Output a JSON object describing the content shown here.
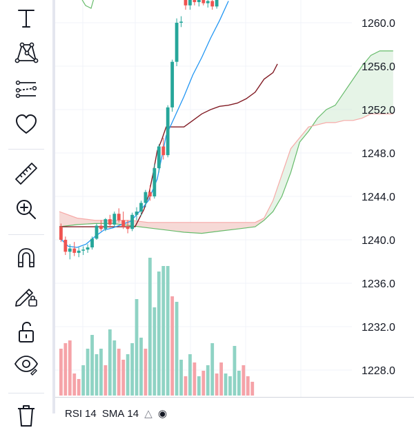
{
  "price_axis": {
    "ticks": [
      "1260.0",
      "1256.0",
      "1252.0",
      "1248.0",
      "1244.0",
      "1240.0",
      "1236.0",
      "1232.0",
      "1228.0"
    ]
  },
  "toolbar": {
    "tools": [
      {
        "name": "text-tool",
        "icon": "text-T-icon"
      },
      {
        "name": "patterns-tool",
        "icon": "xabcd-pattern-icon"
      },
      {
        "name": "prediction-tool",
        "icon": "forecast-lines-icon"
      },
      {
        "name": "favorites-tool",
        "icon": "heart-icon"
      },
      {
        "name": "measure-tool",
        "icon": "ruler-icon"
      },
      {
        "name": "zoom-tool",
        "icon": "zoom-in-icon"
      },
      {
        "name": "magnet-tool",
        "icon": "magnet-icon"
      },
      {
        "name": "lock-drawing-tool",
        "icon": "pencil-lock-icon"
      },
      {
        "name": "lock-all-tool",
        "icon": "unlock-icon"
      },
      {
        "name": "hide-drawings-tool",
        "icon": "eye-icon"
      },
      {
        "name": "remove-tool",
        "icon": "trash-icon"
      }
    ]
  },
  "rsi": {
    "name": "RSI",
    "length": "14",
    "ma_type": "SMA",
    "ma_length": "14"
  },
  "colors": {
    "up": "#26a69a",
    "down": "#ef5350",
    "conversion_line": "#2196f3",
    "base_line": "#801922",
    "span_a": "#66bb6a",
    "span_b": "#f7a9a7",
    "grid": "#f0f3fa"
  },
  "chart_data": {
    "type": "candlestick",
    "ylim": [
      1226.0,
      1262.0
    ],
    "candles": [
      {
        "o": 1241.2,
        "h": 1241.5,
        "l": 1239.8,
        "c": 1240.0
      },
      {
        "o": 1240.0,
        "h": 1240.3,
        "l": 1238.6,
        "c": 1238.9
      },
      {
        "o": 1238.9,
        "h": 1239.6,
        "l": 1238.2,
        "c": 1239.2
      },
      {
        "o": 1239.2,
        "h": 1239.8,
        "l": 1238.5,
        "c": 1238.8
      },
      {
        "o": 1238.8,
        "h": 1239.3,
        "l": 1238.4,
        "c": 1239.0
      },
      {
        "o": 1239.0,
        "h": 1239.4,
        "l": 1238.6,
        "c": 1239.1
      },
      {
        "o": 1239.1,
        "h": 1239.6,
        "l": 1238.8,
        "c": 1239.3
      },
      {
        "o": 1239.3,
        "h": 1240.3,
        "l": 1239.1,
        "c": 1240.1
      },
      {
        "o": 1240.1,
        "h": 1241.5,
        "l": 1240.0,
        "c": 1241.3
      },
      {
        "o": 1241.3,
        "h": 1241.8,
        "l": 1240.8,
        "c": 1241.0
      },
      {
        "o": 1241.0,
        "h": 1242.0,
        "l": 1240.8,
        "c": 1241.9
      },
      {
        "o": 1241.9,
        "h": 1242.3,
        "l": 1241.1,
        "c": 1241.4
      },
      {
        "o": 1241.4,
        "h": 1242.6,
        "l": 1241.2,
        "c": 1242.4
      },
      {
        "o": 1242.4,
        "h": 1242.9,
        "l": 1241.6,
        "c": 1241.8
      },
      {
        "o": 1241.8,
        "h": 1242.6,
        "l": 1241.0,
        "c": 1241.2
      },
      {
        "o": 1241.2,
        "h": 1241.8,
        "l": 1240.6,
        "c": 1241.0
      },
      {
        "o": 1241.0,
        "h": 1242.5,
        "l": 1240.8,
        "c": 1242.3
      },
      {
        "o": 1242.3,
        "h": 1243.0,
        "l": 1241.8,
        "c": 1242.6
      },
      {
        "o": 1242.6,
        "h": 1243.6,
        "l": 1242.2,
        "c": 1243.4
      },
      {
        "o": 1243.4,
        "h": 1244.6,
        "l": 1243.0,
        "c": 1244.4
      },
      {
        "o": 1244.4,
        "h": 1245.0,
        "l": 1243.6,
        "c": 1244.0
      },
      {
        "o": 1244.0,
        "h": 1247.0,
        "l": 1243.8,
        "c": 1246.6
      },
      {
        "o": 1246.6,
        "h": 1248.8,
        "l": 1246.2,
        "c": 1248.6
      },
      {
        "o": 1248.6,
        "h": 1249.4,
        "l": 1247.4,
        "c": 1247.8
      },
      {
        "o": 1247.8,
        "h": 1252.4,
        "l": 1247.6,
        "c": 1252.2
      },
      {
        "o": 1252.2,
        "h": 1256.6,
        "l": 1251.8,
        "c": 1256.4
      },
      {
        "o": 1256.4,
        "h": 1260.4,
        "l": 1256.0,
        "c": 1260.0
      },
      {
        "o": 1260.0,
        "h": 1260.6,
        "l": 1259.6,
        "c": 1260.1
      }
    ],
    "late_candles": [
      {
        "o": 1262.2,
        "h": 1262.6,
        "l": 1261.2,
        "c": 1261.6
      },
      {
        "o": 1261.6,
        "h": 1262.4,
        "l": 1261.2,
        "c": 1262.2
      },
      {
        "o": 1262.2,
        "h": 1262.8,
        "l": 1261.6,
        "c": 1261.9
      },
      {
        "o": 1261.9,
        "h": 1262.4,
        "l": 1261.5,
        "c": 1262.1
      },
      {
        "o": 1262.1,
        "h": 1262.6,
        "l": 1261.6,
        "c": 1261.8
      },
      {
        "o": 1261.8,
        "h": 1262.2,
        "l": 1261.4,
        "c": 1262.0
      },
      {
        "o": 1262.0,
        "h": 1262.4,
        "l": 1261.2,
        "c": 1261.5
      },
      {
        "o": 1261.5,
        "h": 1262.3,
        "l": 1261.3,
        "c": 1262.1
      }
    ],
    "volume": [
      {
        "v": 0.34,
        "up": false
      },
      {
        "v": 0.38,
        "up": false
      },
      {
        "v": 0.4,
        "up": false
      },
      {
        "v": 0.16,
        "up": false
      },
      {
        "v": 0.12,
        "up": false
      },
      {
        "v": 0.22,
        "up": true
      },
      {
        "v": 0.34,
        "up": true
      },
      {
        "v": 0.44,
        "up": true
      },
      {
        "v": 0.3,
        "up": true
      },
      {
        "v": 0.34,
        "up": true
      },
      {
        "v": 0.22,
        "up": false
      },
      {
        "v": 0.48,
        "up": true
      },
      {
        "v": 0.4,
        "up": true
      },
      {
        "v": 0.34,
        "up": false
      },
      {
        "v": 0.26,
        "up": false
      },
      {
        "v": 0.3,
        "up": true
      },
      {
        "v": 0.38,
        "up": true
      },
      {
        "v": 0.7,
        "up": true
      },
      {
        "v": 0.42,
        "up": true
      },
      {
        "v": 0.34,
        "up": false
      },
      {
        "v": 1.0,
        "up": true
      },
      {
        "v": 0.64,
        "up": true
      },
      {
        "v": 0.9,
        "up": true
      },
      {
        "v": 0.94,
        "up": true
      },
      {
        "v": 0.94,
        "up": true
      },
      {
        "v": 0.72,
        "up": false
      },
      {
        "v": 0.68,
        "up": true
      },
      {
        "v": 0.26,
        "up": true
      },
      {
        "v": 0.14,
        "up": false
      },
      {
        "v": 0.3,
        "up": true
      },
      {
        "v": 0.24,
        "up": false
      },
      {
        "v": 0.14,
        "up": true
      },
      {
        "v": 0.18,
        "up": false
      },
      {
        "v": 0.22,
        "up": true
      },
      {
        "v": 0.38,
        "up": true
      },
      {
        "v": 0.16,
        "up": false
      },
      {
        "v": 0.24,
        "up": false
      },
      {
        "v": 0.16,
        "up": true
      },
      {
        "v": 0.14,
        "up": true
      },
      {
        "v": 0.36,
        "up": true
      },
      {
        "v": 0.18,
        "up": true
      },
      {
        "v": 0.22,
        "up": false
      },
      {
        "v": 0.14,
        "up": false
      },
      {
        "v": 0.1,
        "up": false
      }
    ],
    "conversion_line": [
      [
        0,
        1240.2
      ],
      [
        2,
        1239.4
      ],
      [
        4,
        1239.3
      ],
      [
        6,
        1239.6
      ],
      [
        8,
        1240.3
      ],
      [
        10,
        1240.9
      ],
      [
        12,
        1241.1
      ],
      [
        14,
        1241.4
      ],
      [
        16,
        1241.7
      ],
      [
        18,
        1242.6
      ],
      [
        20,
        1243.6
      ],
      [
        22,
        1245.6
      ],
      [
        24,
        1249.6
      ],
      [
        26,
        1251.4
      ],
      [
        28,
        1253.2
      ],
      [
        30,
        1255.2
      ],
      [
        32,
        1256.8
      ],
      [
        34,
        1258.6
      ],
      [
        36,
        1260.2
      ],
      [
        38,
        1262.0
      ]
    ],
    "base_line": [
      [
        0,
        1241.2
      ],
      [
        6,
        1241.2
      ],
      [
        8,
        1241.2
      ],
      [
        17,
        1241.2
      ],
      [
        18,
        1242.0
      ],
      [
        19,
        1242.8
      ],
      [
        20,
        1244.0
      ],
      [
        21,
        1246.0
      ],
      [
        22,
        1248.2
      ],
      [
        23,
        1249.2
      ],
      [
        24,
        1250.4
      ],
      [
        26,
        1250.4
      ],
      [
        28,
        1250.4
      ],
      [
        30,
        1251.0
      ],
      [
        32,
        1251.6
      ],
      [
        34,
        1252.0
      ],
      [
        36,
        1252.3
      ],
      [
        38,
        1252.4
      ],
      [
        40,
        1252.6
      ],
      [
        42,
        1253.0
      ],
      [
        44,
        1253.6
      ],
      [
        46,
        1254.8
      ],
      [
        48,
        1255.4
      ],
      [
        49,
        1256.2
      ]
    ],
    "span_a": [
      [
        0,
        1241.2
      ],
      [
        4,
        1241.4
      ],
      [
        8,
        1241.5
      ],
      [
        12,
        1241.5
      ],
      [
        16,
        1241.3
      ],
      [
        20,
        1241.1
      ],
      [
        24,
        1240.9
      ],
      [
        28,
        1240.7
      ],
      [
        32,
        1240.6
      ],
      [
        36,
        1240.8
      ],
      [
        40,
        1241.0
      ],
      [
        44,
        1241.2
      ],
      [
        46,
        1241.8
      ],
      [
        48,
        1242.6
      ],
      [
        50,
        1244.0
      ],
      [
        52,
        1246.2
      ],
      [
        54,
        1249.0
      ],
      [
        56,
        1250.0
      ],
      [
        58,
        1251.2
      ],
      [
        60,
        1252.0
      ],
      [
        62,
        1252.4
      ],
      [
        64,
        1253.6
      ],
      [
        66,
        1254.8
      ],
      [
        68,
        1256.0
      ],
      [
        70,
        1257.0
      ],
      [
        72,
        1257.4
      ],
      [
        75,
        1257.4
      ]
    ],
    "span_b": [
      [
        0,
        1242.6
      ],
      [
        4,
        1242.0
      ],
      [
        8,
        1241.8
      ],
      [
        12,
        1241.8
      ],
      [
        16,
        1241.8
      ],
      [
        20,
        1241.6
      ],
      [
        24,
        1241.6
      ],
      [
        28,
        1241.6
      ],
      [
        32,
        1241.6
      ],
      [
        36,
        1241.6
      ],
      [
        40,
        1241.6
      ],
      [
        44,
        1241.6
      ],
      [
        46,
        1242.0
      ],
      [
        48,
        1243.6
      ],
      [
        50,
        1246.0
      ],
      [
        52,
        1248.4
      ],
      [
        54,
        1249.4
      ],
      [
        56,
        1250.4
      ],
      [
        58,
        1250.6
      ],
      [
        60,
        1250.8
      ],
      [
        62,
        1250.8
      ],
      [
        64,
        1251.0
      ],
      [
        66,
        1251.0
      ],
      [
        68,
        1251.2
      ],
      [
        70,
        1251.6
      ],
      [
        72,
        1251.6
      ],
      [
        75,
        1251.6
      ]
    ]
  }
}
